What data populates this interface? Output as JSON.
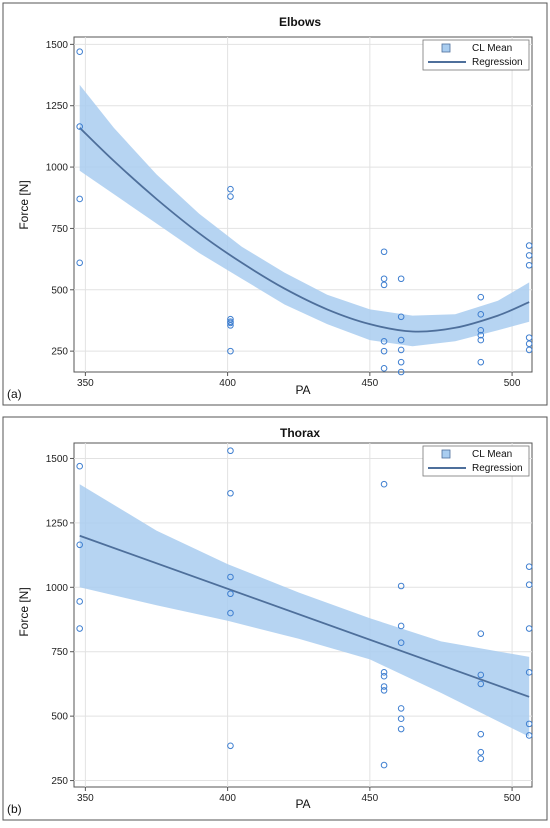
{
  "legend_labels": {
    "cl_mean": "CL Mean",
    "regression": "Regression"
  },
  "colors": {
    "band": "#a9cdf0",
    "line": "#4e6f9b",
    "marker": "#3f7fd0",
    "frame": "#555555",
    "grid": "#e2e2e2"
  },
  "chart_data": [
    {
      "type": "scatter",
      "panel_label": "(a)",
      "title": "Elbows",
      "xlabel": "PA",
      "ylabel": "Force [N]",
      "xlim": [
        346,
        507
      ],
      "ylim": [
        165,
        1530
      ],
      "xticks": [
        350,
        400,
        450,
        500
      ],
      "yticks": [
        250,
        500,
        750,
        1000,
        1250,
        1500
      ],
      "grid": true,
      "legend": {
        "position": "top-right",
        "entries": [
          "CL Mean",
          "Regression"
        ]
      },
      "series": [
        {
          "kind": "points",
          "x": [
            348,
            348,
            348,
            348,
            401,
            401,
            401,
            401,
            401,
            401,
            401,
            455,
            455,
            455,
            455,
            455,
            455,
            461,
            461,
            461,
            461,
            461,
            461,
            489,
            489,
            489,
            489,
            489,
            489,
            506,
            506,
            506,
            506,
            506,
            506
          ],
          "y": [
            1470,
            1165,
            870,
            610,
            910,
            880,
            380,
            370,
            355,
            250,
            365,
            655,
            545,
            520,
            290,
            250,
            180,
            545,
            390,
            295,
            255,
            205,
            165,
            470,
            400,
            335,
            315,
            295,
            205,
            680,
            640,
            600,
            305,
            280,
            255
          ]
        },
        {
          "kind": "regression",
          "x": [
            348,
            360,
            375,
            390,
            405,
            420,
            435,
            450,
            465,
            480,
            495,
            506
          ],
          "y": [
            1160,
            1025,
            870,
            730,
            610,
            505,
            420,
            360,
            330,
            345,
            395,
            450
          ]
        },
        {
          "kind": "cl_mean",
          "x": [
            348,
            360,
            375,
            390,
            405,
            420,
            435,
            450,
            465,
            480,
            495,
            506
          ],
          "lower": [
            985,
            890,
            770,
            650,
            545,
            440,
            360,
            295,
            270,
            290,
            335,
            370
          ],
          "upper": [
            1335,
            1160,
            970,
            810,
            675,
            570,
            480,
            420,
            395,
            400,
            455,
            530
          ]
        }
      ]
    },
    {
      "type": "scatter",
      "panel_label": "(b)",
      "title": "Thorax",
      "xlabel": "PA",
      "ylabel": "Force [N]",
      "xlim": [
        346,
        507
      ],
      "ylim": [
        225,
        1560
      ],
      "xticks": [
        350,
        400,
        450,
        500
      ],
      "yticks": [
        250,
        500,
        750,
        1000,
        1250,
        1500
      ],
      "grid": true,
      "legend": {
        "position": "top-right",
        "entries": [
          "CL Mean",
          "Regression"
        ]
      },
      "series": [
        {
          "kind": "points",
          "x": [
            348,
            348,
            348,
            348,
            401,
            401,
            401,
            401,
            401,
            401,
            455,
            455,
            455,
            455,
            455,
            455,
            461,
            461,
            461,
            461,
            461,
            461,
            489,
            489,
            489,
            489,
            489,
            489,
            506,
            506,
            506,
            506,
            506,
            506
          ],
          "y": [
            1470,
            1165,
            945,
            840,
            1530,
            1365,
            1040,
            975,
            900,
            385,
            1400,
            670,
            655,
            615,
            600,
            310,
            1005,
            850,
            785,
            530,
            490,
            450,
            820,
            660,
            625,
            430,
            360,
            335,
            1080,
            1010,
            840,
            670,
            470,
            425
          ],
          "r": 3
        },
        {
          "kind": "regression",
          "x": [
            348,
            506
          ],
          "y": [
            1200,
            575
          ]
        },
        {
          "kind": "cl_mean",
          "x": [
            348,
            375,
            400,
            425,
            450,
            475,
            506
          ],
          "lower": [
            1000,
            930,
            870,
            800,
            720,
            590,
            420
          ],
          "upper": [
            1400,
            1220,
            1090,
            980,
            880,
            790,
            730
          ]
        }
      ]
    }
  ]
}
